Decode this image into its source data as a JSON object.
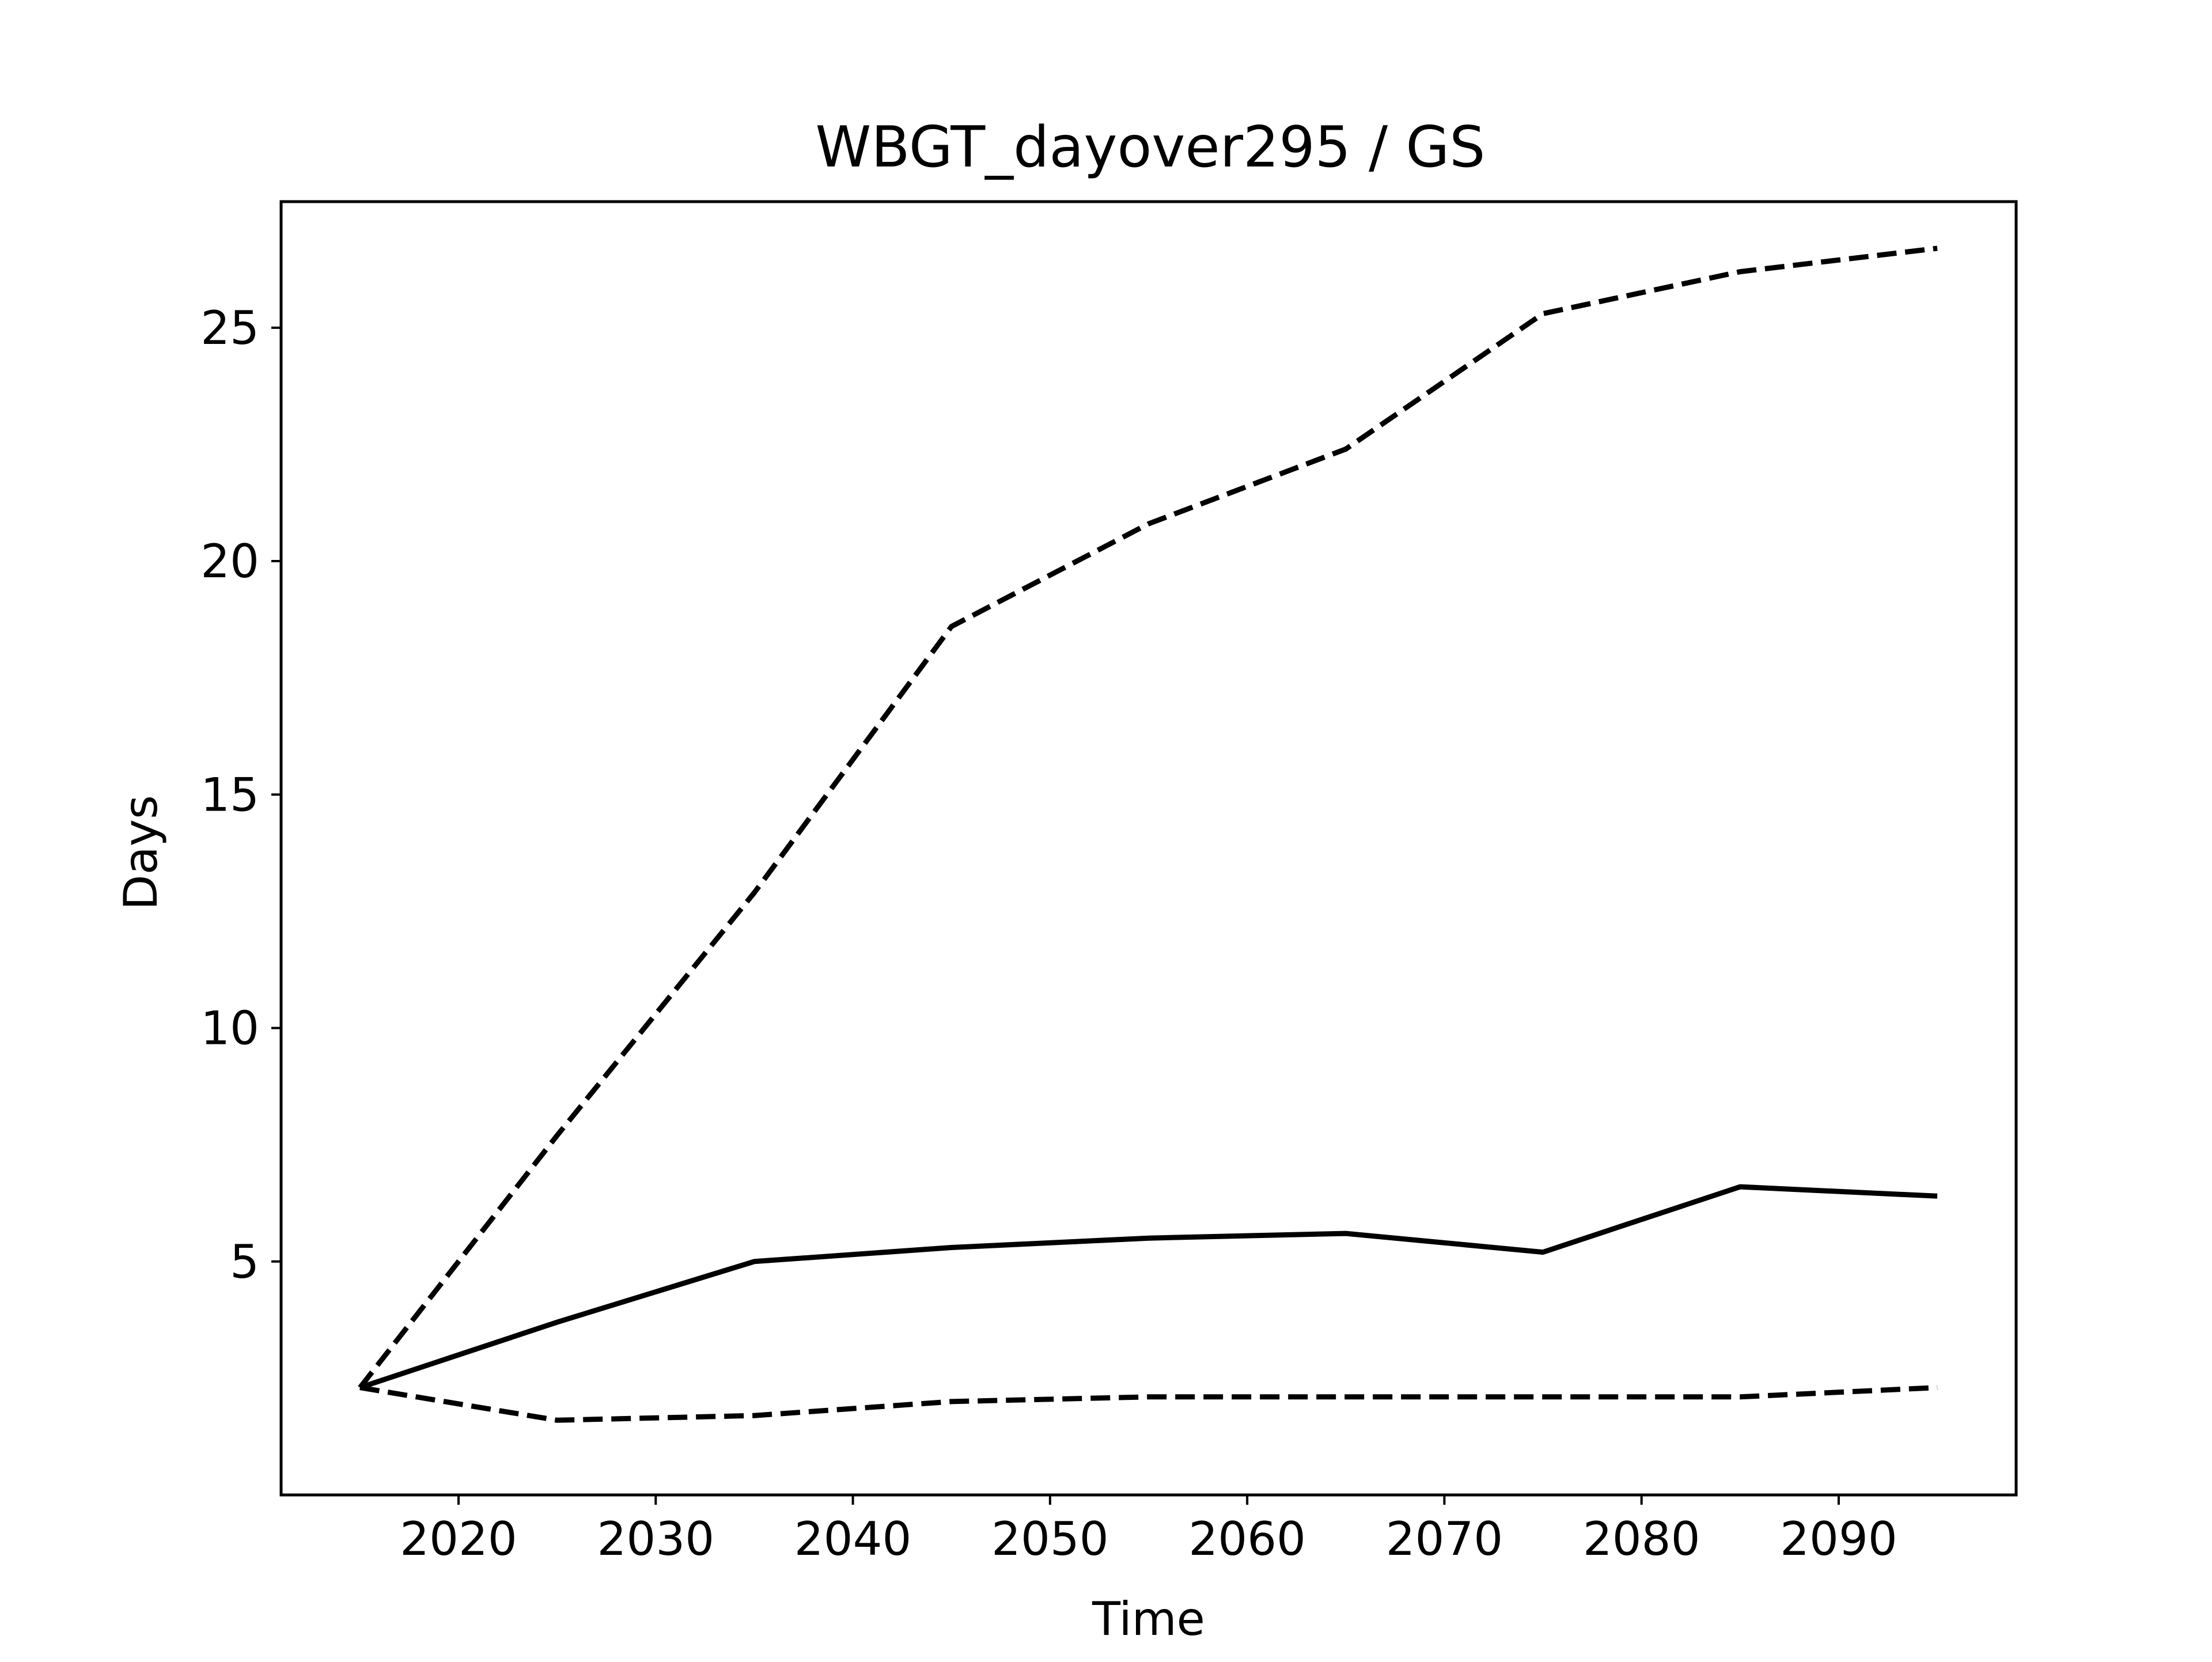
{
  "chart_data": {
    "type": "line",
    "title": "WBGT_dayover295 / GS",
    "xlabel": "Time",
    "ylabel": "Days",
    "xlim": [
      2011.0,
      2099.0
    ],
    "ylim": [
      0.0,
      27.7
    ],
    "xticks": [
      2020,
      2030,
      2040,
      2050,
      2060,
      2070,
      2080,
      2090
    ],
    "yticks": [
      5,
      10,
      15,
      20,
      25
    ],
    "grid": false,
    "legend": "none",
    "x": [
      2015,
      2025,
      2035,
      2045,
      2055,
      2065,
      2075,
      2085,
      2095
    ],
    "series": [
      {
        "style": "dashed",
        "values": [
          2.3,
          7.7,
          12.9,
          18.6,
          20.8,
          22.4,
          25.3,
          26.2,
          26.7
        ]
      },
      {
        "style": "solid",
        "values": [
          2.3,
          3.7,
          5.0,
          5.3,
          5.5,
          5.6,
          5.2,
          6.6,
          6.4
        ]
      },
      {
        "style": "dashed",
        "values": [
          2.3,
          1.6,
          1.7,
          2.0,
          2.1,
          2.1,
          2.1,
          2.1,
          2.3
        ]
      }
    ],
    "line_color": "#000000"
  }
}
